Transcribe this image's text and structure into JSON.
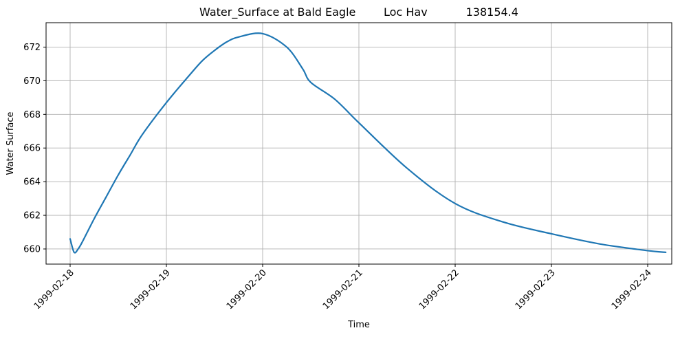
{
  "chart_data": {
    "type": "line",
    "title": "Water_Surface at Bald Eagle        Loc Hav           138154.4",
    "xlabel": "Time",
    "ylabel": "Water Surface",
    "x_tick_labels": [
      "1999-02-18",
      "1999-02-19",
      "1999-02-20",
      "1999-02-21",
      "1999-02-22",
      "1999-02-23",
      "1999-02-24"
    ],
    "y_tick_labels": [
      "660",
      "662",
      "664",
      "666",
      "668",
      "670",
      "672"
    ],
    "x_ticks": [
      "1999-02-18",
      "1999-02-19",
      "1999-02-20",
      "1999-02-21",
      "1999-02-22",
      "1999-02-23",
      "1999-02-24"
    ],
    "y_ticks": [
      660,
      662,
      664,
      666,
      668,
      670,
      672
    ],
    "xlim": [
      "1999-02-17 18:00",
      "1999-02-24 06:00"
    ],
    "ylim": [
      659.1,
      673.45
    ],
    "grid": true,
    "color": "#1f77b4",
    "series": [
      {
        "x": [
          "1999-02-18 00:00",
          "1999-02-18 01:00",
          "1999-02-18 02:00",
          "1999-02-18 03:00",
          "1999-02-18 06:00",
          "1999-02-18 09:00",
          "1999-02-18 12:00",
          "1999-02-18 15:00",
          "1999-02-18 18:00",
          "1999-02-19 00:00",
          "1999-02-19 06:00",
          "1999-02-19 09:00",
          "1999-02-19 12:00",
          "1999-02-19 15:00",
          "1999-02-19 18:00",
          "1999-02-20 00:00",
          "1999-02-20 06:00",
          "1999-02-20 10:00",
          "1999-02-20 12:00",
          "1999-02-20 18:00",
          "1999-02-21 00:00",
          "1999-02-21 12:00",
          "1999-02-22 00:00",
          "1999-02-22 12:00",
          "1999-02-23 00:00",
          "1999-02-23 12:00",
          "1999-02-24 00:00",
          "1999-02-24 04:30"
        ],
        "y": [
          660.6,
          659.8,
          660.0,
          660.4,
          661.8,
          663.1,
          664.4,
          665.6,
          666.8,
          668.7,
          670.4,
          671.2,
          671.8,
          672.3,
          672.6,
          672.8,
          672.0,
          670.7,
          669.9,
          668.9,
          667.5,
          664.8,
          662.7,
          661.6,
          660.9,
          660.3,
          659.9,
          659.8
        ]
      }
    ]
  }
}
